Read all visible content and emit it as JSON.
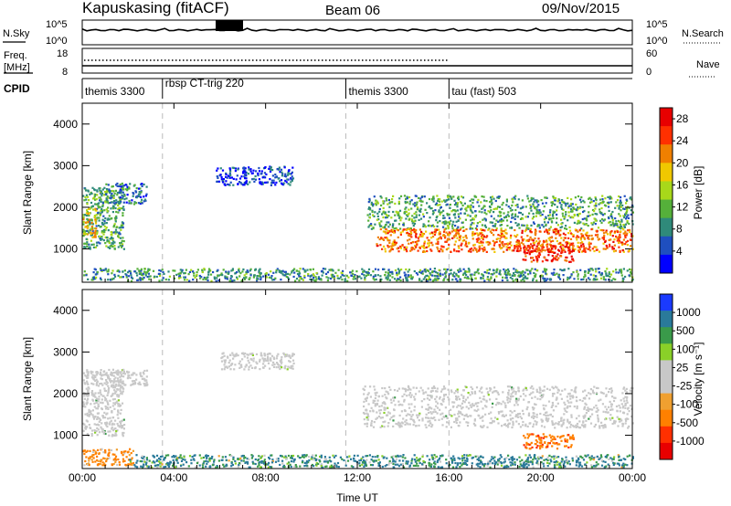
{
  "header": {
    "station": "Kapuskasing (fitACF)",
    "beam": "Beam 06",
    "date": "09/Nov/2015"
  },
  "aux_panels": {
    "nsky": {
      "left_label": "N.Sky",
      "left_ticks": [
        "10^5",
        "10^0"
      ],
      "right_ticks": [
        "10^5",
        "10^0"
      ],
      "right_label": "N.Search"
    },
    "freq": {
      "left_label": "Freq.",
      "left_unit": "[MHz]",
      "left_ticks": [
        "18",
        "8"
      ],
      "right_ticks": [
        "60",
        "0"
      ],
      "right_label": "Nave"
    },
    "cpid": {
      "label": "CPID",
      "segments": [
        {
          "name": "themis 3300",
          "start": 0.0,
          "end": 3.5
        },
        {
          "name": "rbsp CT-trig 220",
          "start": 3.5,
          "end": 11.5
        },
        {
          "name": "themis 3300",
          "start": 11.5,
          "end": 16.0
        },
        {
          "name": "tau (fast) 503",
          "start": 16.0,
          "end": 24.0
        }
      ]
    }
  },
  "colors": {
    "power_scale": [
      "#0000ff",
      "#1f4fbf",
      "#2f8a7a",
      "#55b03a",
      "#a8d81a",
      "#f0c800",
      "#f08000",
      "#ff3000",
      "#e80000"
    ],
    "velocity_scale": [
      "#1a3aff",
      "#2a7a9a",
      "#3a9a4a",
      "#8ad028",
      "#c8c8c8",
      "#c8c8c8",
      "#f0a030",
      "#ff8000",
      "#ff3000",
      "#e80000"
    ],
    "ground_scatter": "#c8c8c8"
  },
  "chart_data": [
    {
      "type": "heatmap",
      "title": "",
      "xlabel": "Time UT",
      "ylabel": "Slant Range [km]",
      "xlim": [
        0,
        24
      ],
      "ylim": [
        200,
        4500
      ],
      "x_ticks": [
        "00:00",
        "04:00",
        "08:00",
        "12:00",
        "16:00",
        "20:00",
        "00:00"
      ],
      "y_ticks": [
        1000,
        2000,
        3000,
        4000
      ],
      "colorbar": {
        "label": "Power [dB]",
        "ticks": [
          4,
          8,
          12,
          16,
          20,
          24,
          28
        ],
        "range": [
          0,
          30
        ]
      },
      "echo_regions": [
        {
          "t0": 0.0,
          "t1": 1.8,
          "r0": 1000,
          "r1": 2500,
          "level": 0.35
        },
        {
          "t0": 0.0,
          "t1": 0.6,
          "r0": 1300,
          "r1": 2000,
          "level": 0.6
        },
        {
          "t0": 1.0,
          "t1": 2.8,
          "r0": 2100,
          "r1": 2600,
          "level": 0.25
        },
        {
          "t0": 0.0,
          "t1": 24.0,
          "r0": 250,
          "r1": 550,
          "level": 0.3
        },
        {
          "t0": 5.8,
          "t1": 9.2,
          "r0": 2550,
          "r1": 3000,
          "level": 0.15
        },
        {
          "t0": 12.4,
          "t1": 24.0,
          "r0": 1500,
          "r1": 2300,
          "level": 0.35
        },
        {
          "t0": 12.8,
          "t1": 24.0,
          "r0": 950,
          "r1": 1500,
          "level": 0.75
        },
        {
          "t0": 19.2,
          "t1": 21.4,
          "r0": 700,
          "r1": 1100,
          "level": 0.9
        }
      ]
    },
    {
      "type": "heatmap",
      "title": "",
      "xlabel": "Time UT",
      "ylabel": "Slant Range [km]",
      "xlim": [
        0,
        24
      ],
      "ylim": [
        200,
        4500
      ],
      "x_ticks": [
        "00:00",
        "04:00",
        "08:00",
        "12:00",
        "16:00",
        "20:00",
        "00:00"
      ],
      "y_ticks": [
        1000,
        2000,
        3000,
        4000
      ],
      "colorbar": {
        "label": "Velocity [m s^-1]",
        "ticks": [
          1000,
          500,
          100,
          25,
          -25,
          -100,
          -500,
          -1000
        ]
      },
      "echo_regions": [
        {
          "t0": 0.0,
          "t1": 1.8,
          "r0": 1000,
          "r1": 2600,
          "value": 0,
          "ground": true
        },
        {
          "t0": 1.0,
          "t1": 2.8,
          "r0": 2200,
          "r1": 2600,
          "value": 0,
          "ground": true
        },
        {
          "t0": 0.0,
          "t1": 2.2,
          "r0": 300,
          "r1": 700,
          "value": -150
        },
        {
          "t0": 2.0,
          "t1": 24.0,
          "r0": 250,
          "r1": 550,
          "value": 120
        },
        {
          "t0": 6.0,
          "t1": 9.2,
          "r0": 2600,
          "r1": 3000,
          "value": 0,
          "ground": true
        },
        {
          "t0": 12.2,
          "t1": 24.0,
          "r0": 1200,
          "r1": 2200,
          "value": 0,
          "ground": true
        },
        {
          "t0": 19.2,
          "t1": 21.4,
          "r0": 700,
          "r1": 1050,
          "value": -400
        }
      ]
    }
  ]
}
